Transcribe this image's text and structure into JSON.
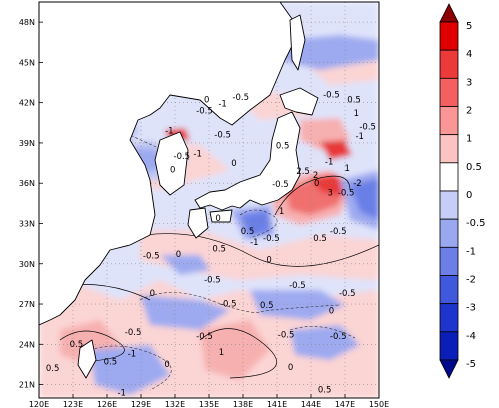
{
  "map": {
    "lat_axis": {
      "ticks": [
        "48N",
        "45N",
        "42N",
        "39N",
        "36N",
        "33N",
        "30N",
        "27N",
        "24N",
        "21N"
      ],
      "values": [
        48,
        45,
        42,
        39,
        36,
        33,
        30,
        27,
        24,
        21
      ],
      "range": [
        20,
        49.5
      ]
    },
    "lon_axis": {
      "ticks": [
        "120E",
        "123E",
        "126E",
        "129E",
        "132E",
        "135E",
        "138E",
        "141E",
        "144E",
        "147E",
        "150E"
      ],
      "values": [
        120,
        123,
        126,
        129,
        132,
        135,
        138,
        141,
        144,
        147,
        150
      ],
      "range": [
        120,
        150
      ]
    },
    "contour_labels": [
      {
        "text": "-0.5",
        "lon": 137.8,
        "lat": 42.2
      },
      {
        "text": "-1",
        "lon": 136.2,
        "lat": 41.7
      },
      {
        "text": "0",
        "lon": 134.8,
        "lat": 42.0
      },
      {
        "text": "-0.5",
        "lon": 134.6,
        "lat": 41.2
      },
      {
        "text": "-1",
        "lon": 131.5,
        "lat": 39.7
      },
      {
        "text": "-0.5",
        "lon": 136.2,
        "lat": 39.4
      },
      {
        "text": "-1",
        "lon": 134.0,
        "lat": 38.0
      },
      {
        "text": "-0.5",
        "lon": 132.6,
        "lat": 37.8
      },
      {
        "text": "0",
        "lon": 137.2,
        "lat": 37.3
      },
      {
        "text": "0",
        "lon": 131.8,
        "lat": 36.8
      },
      {
        "text": "0.5",
        "lon": 141.5,
        "lat": 38.6
      },
      {
        "text": "-0.5",
        "lon": 145.8,
        "lat": 42.4
      },
      {
        "text": "0.5",
        "lon": 147.8,
        "lat": 42.0
      },
      {
        "text": "1",
        "lon": 148.0,
        "lat": 41.0
      },
      {
        "text": "-0.5",
        "lon": 149.0,
        "lat": 40.0
      },
      {
        "text": "-1",
        "lon": 148.3,
        "lat": 39.3
      },
      {
        "text": "-1",
        "lon": 145.6,
        "lat": 37.4
      },
      {
        "text": "1",
        "lon": 147.2,
        "lat": 36.9
      },
      {
        "text": "2.5",
        "lon": 143.3,
        "lat": 36.7
      },
      {
        "text": "2",
        "lon": 144.4,
        "lat": 36.4
      },
      {
        "text": "-0.5",
        "lon": 141.3,
        "lat": 35.7
      },
      {
        "text": "0",
        "lon": 144.5,
        "lat": 35.8
      },
      {
        "text": "-2",
        "lon": 148.1,
        "lat": 35.8
      },
      {
        "text": "-0.5",
        "lon": 147.1,
        "lat": 35.1
      },
      {
        "text": "3",
        "lon": 145.7,
        "lat": 35.1
      },
      {
        "text": "1",
        "lon": 141.4,
        "lat": 33.7
      },
      {
        "text": "-0.5",
        "lon": 140.5,
        "lat": 31.7
      },
      {
        "text": "-0.5",
        "lon": 146.4,
        "lat": 32.2
      },
      {
        "text": "0.5",
        "lon": 144.8,
        "lat": 31.7
      },
      {
        "text": "0",
        "lon": 135.8,
        "lat": 33.2
      },
      {
        "text": "0.5",
        "lon": 138.4,
        "lat": 32.2
      },
      {
        "text": "-1",
        "lon": 139.0,
        "lat": 31.4
      },
      {
        "text": "0.5",
        "lon": 135.9,
        "lat": 30.9
      },
      {
        "text": "0",
        "lon": 132.3,
        "lat": 30.5
      },
      {
        "text": "-0.5",
        "lon": 129.9,
        "lat": 30.4
      },
      {
        "text": "0",
        "lon": 140.3,
        "lat": 30.1
      },
      {
        "text": "-0.5",
        "lon": 135.3,
        "lat": 28.6
      },
      {
        "text": "-0.5",
        "lon": 142.8,
        "lat": 28.2
      },
      {
        "text": "0",
        "lon": 130.0,
        "lat": 27.6
      },
      {
        "text": "-0.5",
        "lon": 136.7,
        "lat": 26.8
      },
      {
        "text": "0.5",
        "lon": 140.1,
        "lat": 26.7
      },
      {
        "text": "0",
        "lon": 145.8,
        "lat": 26.3
      },
      {
        "text": "-0.5",
        "lon": 147.2,
        "lat": 27.6
      },
      {
        "text": "-0.5",
        "lon": 128.3,
        "lat": 24.7
      },
      {
        "text": "-0.5",
        "lon": 134.6,
        "lat": 24.4
      },
      {
        "text": "-0.5",
        "lon": 141.8,
        "lat": 24.5
      },
      {
        "text": "-0.5",
        "lon": 146.4,
        "lat": 24.4
      },
      {
        "text": "0.5",
        "lon": 123.3,
        "lat": 23.8
      },
      {
        "text": "-1",
        "lon": 128.2,
        "lat": 23.1
      },
      {
        "text": "1",
        "lon": 136.1,
        "lat": 23.2
      },
      {
        "text": "0.5",
        "lon": 126.3,
        "lat": 22.5
      },
      {
        "text": "0",
        "lon": 131.3,
        "lat": 22.3
      },
      {
        "text": "0.5",
        "lon": 121.2,
        "lat": 22.0
      },
      {
        "text": "0",
        "lon": 142.2,
        "lat": 22.1
      },
      {
        "text": "0.5",
        "lon": 145.2,
        "lat": 20.4
      },
      {
        "text": "-1",
        "lon": 127.3,
        "lat": 20.2
      }
    ]
  },
  "colorbar": {
    "labels": [
      "5",
      "4",
      "3",
      "2",
      "1",
      "0.5",
      "0",
      "-0.5",
      "-1",
      "-2",
      "-3",
      "-4",
      "-5"
    ],
    "colors": [
      "#8b0000",
      "#e00000",
      "#ec3a3a",
      "#f46060",
      "#fa9696",
      "#fcc3c3",
      "#ffffff",
      "#c6cdf6",
      "#9aa8f0",
      "#6b7fe6",
      "#4058dc",
      "#1d35cc",
      "#0b1fb8",
      "#000a8c"
    ]
  }
}
